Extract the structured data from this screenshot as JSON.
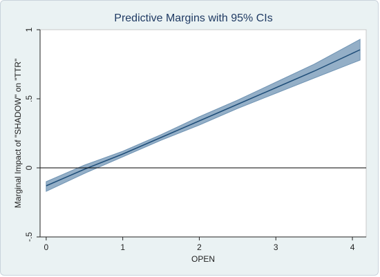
{
  "chart_data": {
    "type": "line",
    "title": "Predictive Margins with 95% CIs",
    "xlabel": "OPEN",
    "ylabel": "Marginal Impact of \"SHADOW\" on \"TTR\"",
    "xlim": [
      -0.08,
      4.18
    ],
    "ylim": [
      -0.5,
      1.0
    ],
    "x_ticks": [
      0,
      1,
      2,
      3,
      4
    ],
    "x_tick_labels": [
      "0",
      "1",
      "2",
      "3",
      "4"
    ],
    "y_ticks": [
      -0.5,
      0,
      0.5,
      1
    ],
    "y_tick_labels": [
      "-.5",
      "0",
      ".5",
      "1"
    ],
    "reference_line_y": 0,
    "grid": false,
    "series": [
      {
        "x": [
          0,
          0.5,
          1,
          1.5,
          2,
          2.5,
          3,
          3.5,
          4.1
        ],
        "y": [
          -0.13,
          -0.01,
          0.1,
          0.22,
          0.34,
          0.46,
          0.58,
          0.7,
          0.855
        ],
        "ci_lower": [
          -0.17,
          -0.04,
          0.08,
          0.2,
          0.31,
          0.43,
          0.54,
          0.65,
          0.78
        ],
        "ci_upper": [
          -0.1,
          0.02,
          0.12,
          0.24,
          0.37,
          0.49,
          0.62,
          0.75,
          0.93
        ]
      }
    ],
    "colors": {
      "line": "#1f4e79",
      "band": "#7094b4",
      "reference": "#000000",
      "plot_bg": "#ffffff",
      "frame_bg": "#eaf2f3"
    }
  }
}
